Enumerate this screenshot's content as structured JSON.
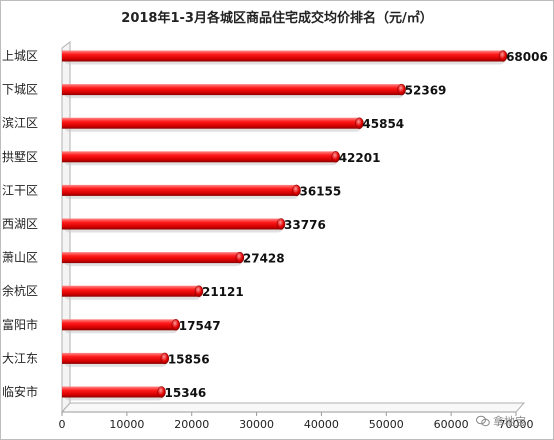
{
  "chart_data": {
    "type": "bar",
    "orientation": "horizontal",
    "title": "2018年1-3月各城区商品住宅成交均价排名（元/㎡）",
    "categories": [
      "上城区",
      "下城区",
      "滨江区",
      "拱墅区",
      "江干区",
      "西湖区",
      "萧山区",
      "余杭区",
      "富阳市",
      "大江东",
      "临安市"
    ],
    "values": [
      68006,
      52369,
      45854,
      42201,
      36155,
      33776,
      27428,
      21121,
      17547,
      15856,
      15346
    ],
    "data_labels": [
      "68006",
      "52369",
      "45854",
      "42201",
      "36155",
      "33776",
      "27428",
      "21121",
      "17547",
      "15856",
      "15346"
    ],
    "xlim": [
      0,
      70000
    ],
    "xticks": [
      "0",
      "10000",
      "20000",
      "30000",
      "40000",
      "50000",
      "60000",
      "70000"
    ],
    "tick_values": [
      0,
      10000,
      20000,
      30000,
      40000,
      50000,
      60000,
      70000
    ],
    "bar_color": "#e8000a",
    "grid": false,
    "legend": "none"
  },
  "watermark": {
    "icon": "wechat-icon",
    "text": "拿地宝"
  }
}
